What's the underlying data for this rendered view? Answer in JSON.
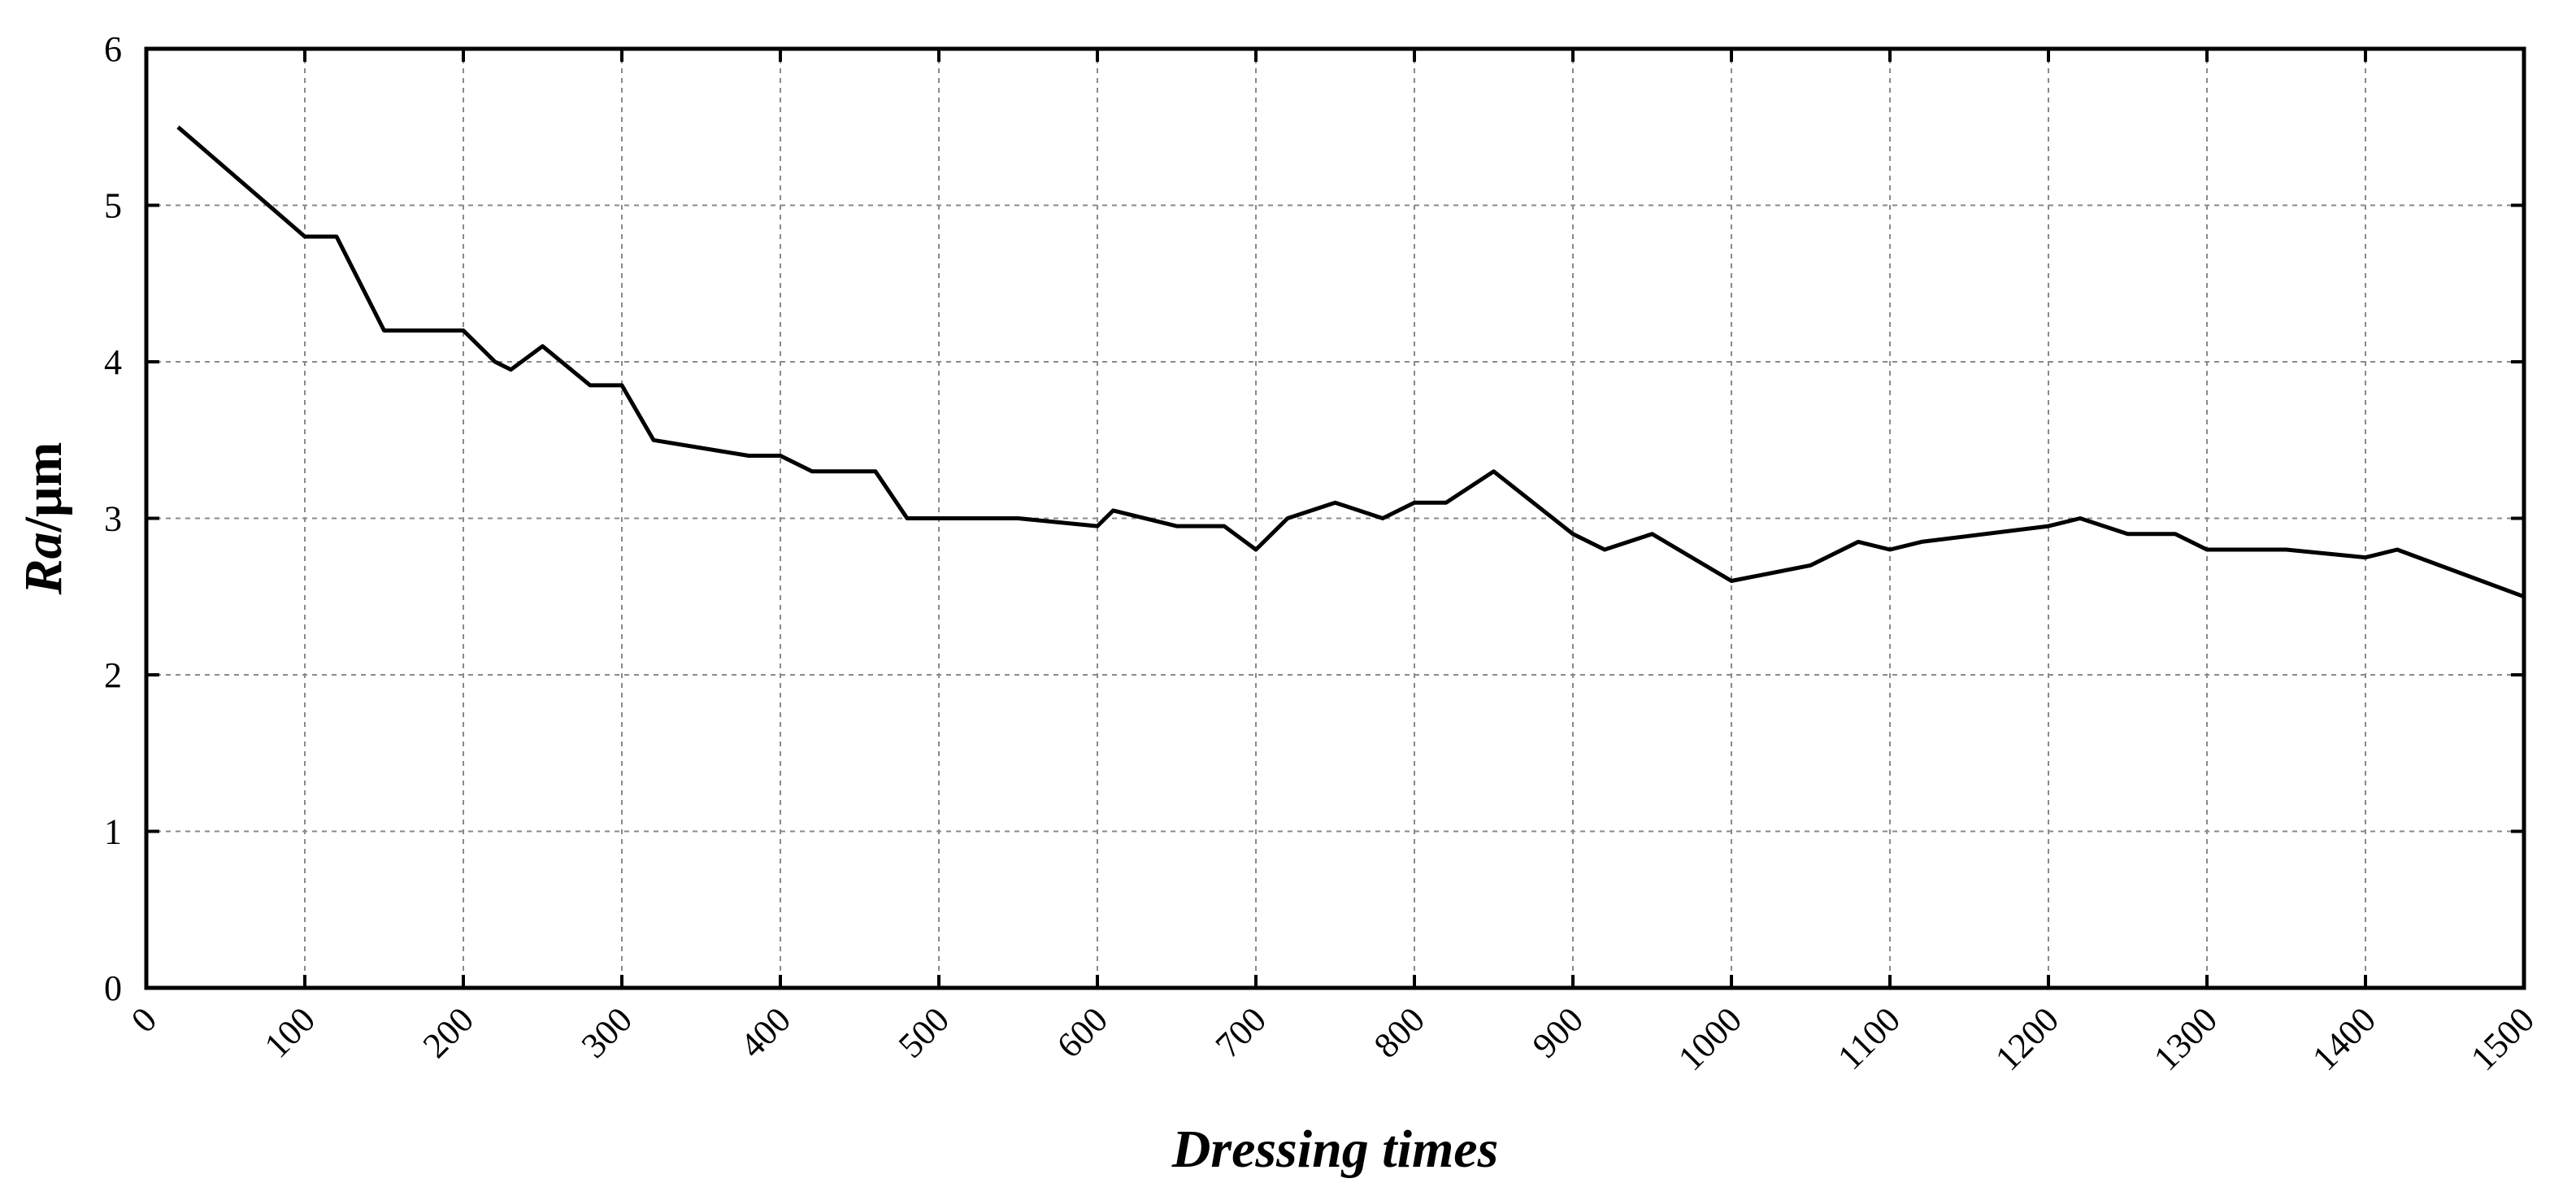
{
  "chart_data": {
    "type": "line",
    "xlabel": "Dressing times",
    "ylabel_italic": "Ra",
    "ylabel_unit": "/μm",
    "xlim": [
      0,
      1500
    ],
    "ylim": [
      0,
      6
    ],
    "x_ticks": [
      0,
      100,
      200,
      300,
      400,
      500,
      600,
      700,
      800,
      900,
      1000,
      1100,
      1200,
      1300,
      1400,
      1500
    ],
    "y_ticks": [
      0,
      1,
      2,
      3,
      4,
      5,
      6
    ],
    "grid": true,
    "series": [
      {
        "x": [
          20,
          60,
          100,
          120,
          150,
          200,
          220,
          230,
          250,
          280,
          300,
          320,
          380,
          400,
          420,
          460,
          480,
          550,
          600,
          610,
          650,
          680,
          700,
          720,
          750,
          780,
          800,
          820,
          850,
          900,
          920,
          950,
          1000,
          1050,
          1080,
          1100,
          1120,
          1200,
          1220,
          1250,
          1280,
          1300,
          1350,
          1400,
          1420,
          1500
        ],
        "y": [
          5.5,
          5.15,
          4.8,
          4.8,
          4.2,
          4.2,
          4.0,
          3.95,
          4.1,
          3.85,
          3.85,
          3.5,
          3.4,
          3.4,
          3.3,
          3.3,
          3.0,
          3.0,
          2.95,
          3.05,
          2.95,
          2.95,
          2.8,
          3.0,
          3.1,
          3.0,
          3.1,
          3.1,
          3.3,
          2.9,
          2.8,
          2.9,
          2.6,
          2.7,
          2.85,
          2.8,
          2.85,
          2.95,
          3.0,
          2.9,
          2.9,
          2.8,
          2.8,
          2.75,
          2.8,
          2.5
        ]
      }
    ]
  }
}
